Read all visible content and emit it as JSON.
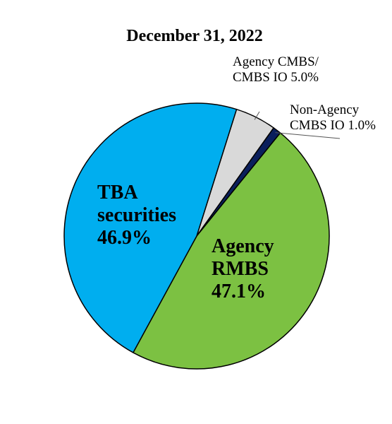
{
  "chart_data": {
    "type": "pie",
    "title": "December 31, 2022",
    "slices": [
      {
        "label": "Agency CMBS/ CMBS IO",
        "lines": [
          "Agency CMBS/",
          "CMBS IO 5.0%"
        ],
        "value": 5.0,
        "display": "5.0%",
        "color": "#d9d9d9"
      },
      {
        "label": "Non-Agency CMBS IO",
        "lines": [
          "Non-Agency",
          "CMBS IO 1.0%"
        ],
        "value": 1.0,
        "display": "1.0%",
        "color": "#0a1f5c"
      },
      {
        "label": "Agency RMBS",
        "lines": [
          "Agency",
          "RMBS",
          "47.1%"
        ],
        "value": 47.1,
        "display": "47.1%",
        "color": "#7cc142"
      },
      {
        "label": "TBA securities",
        "lines": [
          "TBA",
          "securities",
          "46.9%"
        ],
        "value": 46.9,
        "display": "46.9%",
        "color": "#00aeef"
      }
    ],
    "start_angle_deg": 17.5,
    "legend": "none"
  }
}
